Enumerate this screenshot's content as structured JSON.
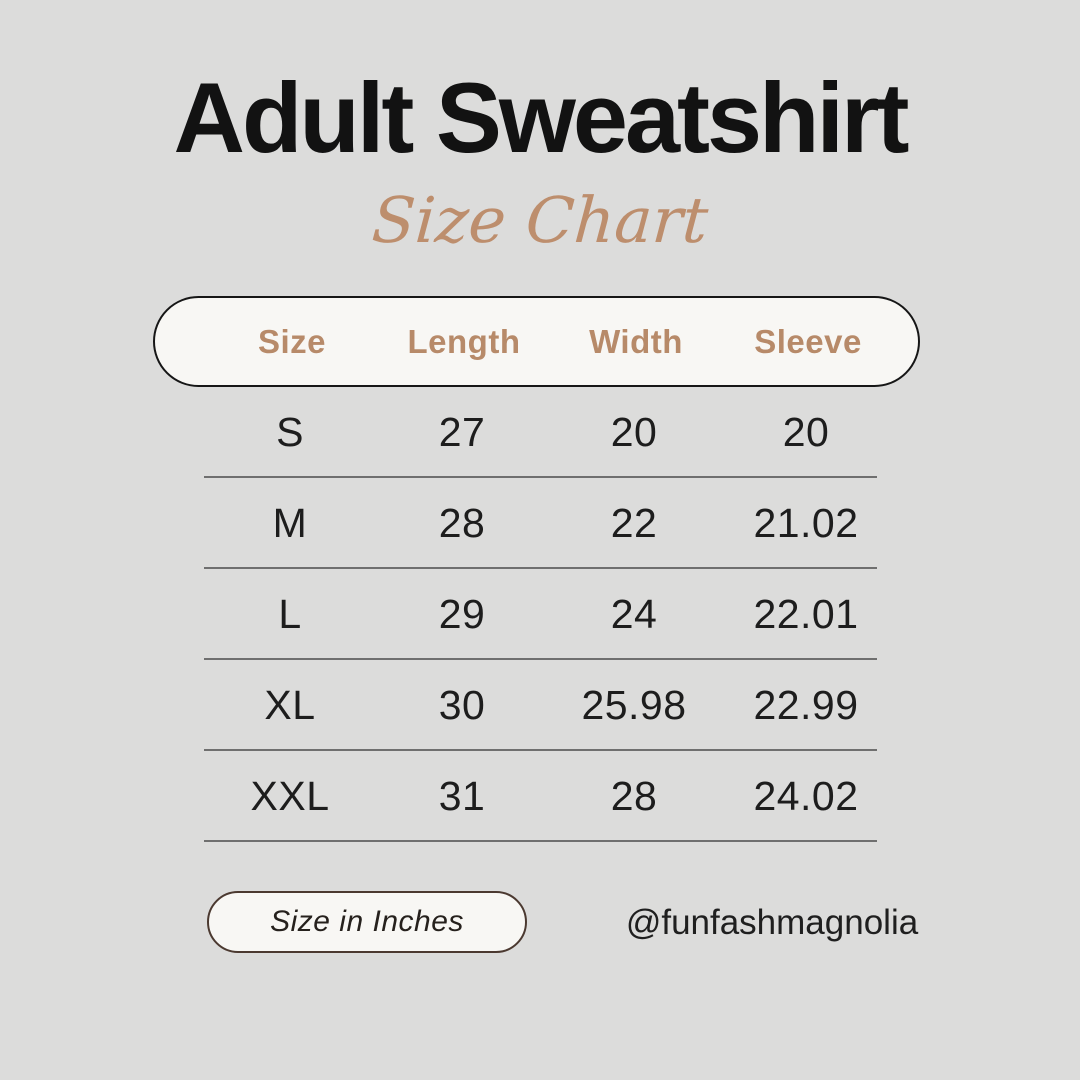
{
  "title": "Adult Sweatshirt",
  "subtitle": "Size Chart",
  "chart_data": {
    "type": "table",
    "title": "Adult Sweatshirt Size Chart",
    "units": "inches",
    "columns": [
      "Size",
      "Length",
      "Width",
      "Sleeve"
    ],
    "rows": [
      [
        "S",
        "27",
        "20",
        "20"
      ],
      [
        "M",
        "28",
        "22",
        "21.02"
      ],
      [
        "L",
        "29",
        "24",
        "22.01"
      ],
      [
        "XL",
        "30",
        "25.98",
        "22.99"
      ],
      [
        "XXL",
        "31",
        "28",
        "24.02"
      ]
    ]
  },
  "footer": {
    "unit_label": "Size in Inches",
    "handle": "@funfashmagnolia"
  },
  "colors": {
    "background": "#dcdcdb",
    "accent_tan": "#b78a69",
    "script_tan": "#bd8e6d",
    "pill_fill": "#f8f7f4",
    "pill_border_dark": "#161616",
    "badge_border_brown": "#4b3930",
    "divider_gray": "#6f6f6f",
    "text_dark": "#1d1d1d"
  }
}
